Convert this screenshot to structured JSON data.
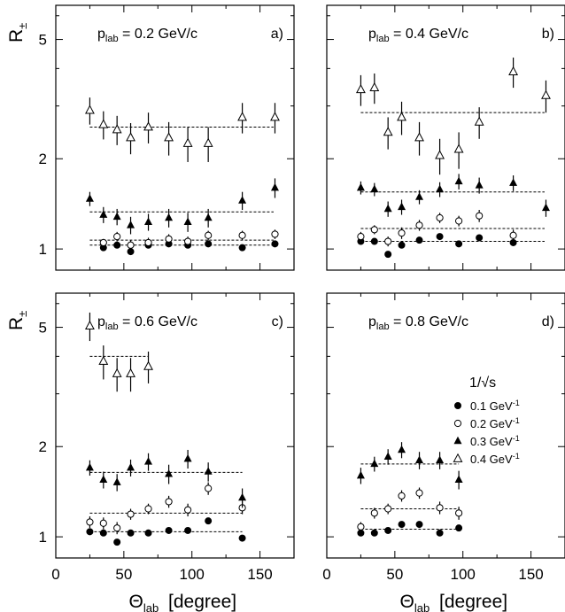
{
  "figure": {
    "ylabel": "R",
    "ylabel_sub": "±",
    "xlabel": "Θ",
    "xlabel_sub": "lab",
    "xlabel_unit": "[degree]"
  },
  "legend": {
    "title": "1/√s",
    "entries": [
      {
        "marker": "filled-circle",
        "label": "0.1 GeV",
        "sup": "-1"
      },
      {
        "marker": "open-circle",
        "label": "0.2 GeV",
        "sup": "-1"
      },
      {
        "marker": "filled-triangle",
        "label": "0.3 GeV",
        "sup": "-1"
      },
      {
        "marker": "open-triangle",
        "label": "0.4 GeV",
        "sup": "-1"
      }
    ]
  },
  "chart_data": [
    {
      "type": "scatter",
      "panel": "a)",
      "title": "p = 0.2 GeV/c",
      "title_sub": "lab",
      "xlim": [
        0,
        175
      ],
      "ylim": [
        0.85,
        6.5
      ],
      "yscale": "log",
      "xticks": [
        0,
        50,
        100,
        150
      ],
      "yticks": [
        1,
        2,
        5
      ],
      "series": [
        {
          "marker": "filled-circle",
          "fit": 1.03,
          "fit_x": [
            25,
            160
          ],
          "points": [
            [
              35,
              1.01,
              0.02
            ],
            [
              45,
              1.03,
              0.02
            ],
            [
              55,
              0.98,
              0.02
            ],
            [
              68,
              1.03,
              0.02
            ],
            [
              83,
              1.04,
              0.02
            ],
            [
              97,
              1.03,
              0.02
            ],
            [
              112,
              1.04,
              0.02
            ],
            [
              137,
              1.01,
              0.02
            ],
            [
              161,
              1.04,
              0.02
            ]
          ]
        },
        {
          "marker": "open-circle",
          "fit": 1.07,
          "fit_x": [
            25,
            160
          ],
          "points": [
            [
              35,
              1.05,
              0.03
            ],
            [
              45,
              1.1,
              0.04
            ],
            [
              55,
              1.03,
              0.04
            ],
            [
              68,
              1.05,
              0.04
            ],
            [
              83,
              1.08,
              0.04
            ],
            [
              97,
              1.06,
              0.04
            ],
            [
              112,
              1.11,
              0.04
            ],
            [
              137,
              1.11,
              0.04
            ],
            [
              161,
              1.12,
              0.04
            ]
          ]
        },
        {
          "marker": "filled-triangle",
          "fit": 1.33,
          "fit_x": [
            25,
            160
          ],
          "points": [
            [
              25,
              1.47,
              0.08
            ],
            [
              35,
              1.3,
              0.08
            ],
            [
              45,
              1.28,
              0.08
            ],
            [
              55,
              1.2,
              0.08
            ],
            [
              68,
              1.23,
              0.08
            ],
            [
              83,
              1.27,
              0.09
            ],
            [
              97,
              1.23,
              0.09
            ],
            [
              112,
              1.27,
              0.09
            ],
            [
              137,
              1.45,
              0.1
            ],
            [
              161,
              1.6,
              0.12
            ]
          ]
        },
        {
          "marker": "open-triangle",
          "fit": 2.55,
          "fit_x": [
            25,
            160
          ],
          "points": [
            [
              25,
              2.9,
              0.3
            ],
            [
              35,
              2.6,
              0.28
            ],
            [
              45,
              2.5,
              0.28
            ],
            [
              55,
              2.35,
              0.28
            ],
            [
              68,
              2.55,
              0.3
            ],
            [
              83,
              2.35,
              0.3
            ],
            [
              97,
              2.25,
              0.3
            ],
            [
              112,
              2.25,
              0.3
            ],
            [
              137,
              2.75,
              0.32
            ],
            [
              161,
              2.75,
              0.32
            ]
          ]
        }
      ]
    },
    {
      "type": "scatter",
      "panel": "b)",
      "title": "p = 0.4 GeV/c",
      "title_sub": "lab",
      "xlim": [
        0,
        175
      ],
      "ylim": [
        0.85,
        6.5
      ],
      "yscale": "log",
      "xticks": [
        0,
        50,
        100,
        150
      ],
      "yticks": [
        1,
        2,
        5
      ],
      "series": [
        {
          "marker": "filled-circle",
          "fit": 1.06,
          "fit_x": [
            25,
            160
          ],
          "points": [
            [
              25,
              1.06,
              0.02
            ],
            [
              35,
              1.06,
              0.02
            ],
            [
              45,
              0.96,
              0.02
            ],
            [
              55,
              1.03,
              0.02
            ],
            [
              68,
              1.07,
              0.02
            ],
            [
              83,
              1.1,
              0.02
            ],
            [
              97,
              1.04,
              0.02
            ],
            [
              112,
              1.09,
              0.02
            ],
            [
              137,
              1.05,
              0.02
            ]
          ]
        },
        {
          "marker": "open-circle",
          "fit": 1.17,
          "fit_x": [
            25,
            160
          ],
          "points": [
            [
              25,
              1.1,
              0.04
            ],
            [
              35,
              1.16,
              0.04
            ],
            [
              45,
              1.06,
              0.04
            ],
            [
              55,
              1.13,
              0.05
            ],
            [
              68,
              1.2,
              0.05
            ],
            [
              83,
              1.27,
              0.05
            ],
            [
              97,
              1.24,
              0.05
            ],
            [
              112,
              1.29,
              0.06
            ],
            [
              137,
              1.11,
              0.05
            ]
          ]
        },
        {
          "marker": "filled-triangle",
          "fit": 1.55,
          "fit_x": [
            25,
            160
          ],
          "points": [
            [
              25,
              1.6,
              0.08
            ],
            [
              35,
              1.58,
              0.08
            ],
            [
              45,
              1.36,
              0.08
            ],
            [
              55,
              1.38,
              0.08
            ],
            [
              68,
              1.49,
              0.08
            ],
            [
              83,
              1.58,
              0.09
            ],
            [
              97,
              1.68,
              0.1
            ],
            [
              112,
              1.63,
              0.1
            ],
            [
              137,
              1.66,
              0.1
            ],
            [
              161,
              1.37,
              0.09
            ]
          ]
        },
        {
          "marker": "open-triangle",
          "fit": 2.85,
          "fit_x": [
            25,
            160
          ],
          "points": [
            [
              25,
              3.4,
              0.4
            ],
            [
              35,
              3.45,
              0.4
            ],
            [
              45,
              2.45,
              0.3
            ],
            [
              55,
              2.75,
              0.35
            ],
            [
              68,
              2.35,
              0.3
            ],
            [
              83,
              2.05,
              0.28
            ],
            [
              97,
              2.15,
              0.3
            ],
            [
              112,
              2.65,
              0.32
            ],
            [
              137,
              3.9,
              0.45
            ],
            [
              161,
              3.25,
              0.4
            ]
          ]
        }
      ]
    },
    {
      "type": "scatter",
      "panel": "c)",
      "title": "p = 0.6 GeV/c",
      "title_sub": "lab",
      "xlim": [
        0,
        175
      ],
      "ylim": [
        0.85,
        6.5
      ],
      "yscale": "log",
      "xticks": [
        0,
        50,
        100,
        150
      ],
      "yticks": [
        1,
        2,
        5
      ],
      "series": [
        {
          "marker": "filled-circle",
          "fit": 1.04,
          "fit_x": [
            25,
            137
          ],
          "points": [
            [
              25,
              1.04,
              0.02
            ],
            [
              35,
              1.03,
              0.02
            ],
            [
              45,
              0.96,
              0.02
            ],
            [
              55,
              1.03,
              0.02
            ],
            [
              68,
              1.03,
              0.02
            ],
            [
              83,
              1.05,
              0.02
            ],
            [
              97,
              1.05,
              0.02
            ],
            [
              112,
              1.13,
              0.02
            ],
            [
              137,
              0.99,
              0.02
            ]
          ]
        },
        {
          "marker": "open-circle",
          "fit": 1.2,
          "fit_x": [
            25,
            137
          ],
          "points": [
            [
              25,
              1.12,
              0.05
            ],
            [
              35,
              1.11,
              0.05
            ],
            [
              45,
              1.07,
              0.05
            ],
            [
              55,
              1.19,
              0.05
            ],
            [
              68,
              1.24,
              0.05
            ],
            [
              83,
              1.31,
              0.06
            ],
            [
              97,
              1.23,
              0.06
            ],
            [
              112,
              1.45,
              0.07
            ],
            [
              137,
              1.25,
              0.06
            ]
          ]
        },
        {
          "marker": "filled-triangle",
          "fit": 1.64,
          "fit_x": [
            25,
            137
          ],
          "points": [
            [
              25,
              1.7,
              0.1
            ],
            [
              35,
              1.55,
              0.1
            ],
            [
              45,
              1.52,
              0.1
            ],
            [
              55,
              1.7,
              0.11
            ],
            [
              68,
              1.78,
              0.12
            ],
            [
              83,
              1.62,
              0.12
            ],
            [
              97,
              1.82,
              0.13
            ],
            [
              112,
              1.65,
              0.12
            ],
            [
              137,
              1.35,
              0.1
            ]
          ]
        },
        {
          "marker": "open-triangle",
          "fit": 4.0,
          "fit_x": [
            25,
            68
          ],
          "points": [
            [
              25,
              5.05,
              0.55
            ],
            [
              35,
              3.85,
              0.5
            ],
            [
              45,
              3.5,
              0.45
            ],
            [
              55,
              3.5,
              0.45
            ],
            [
              68,
              3.7,
              0.45
            ]
          ]
        }
      ]
    },
    {
      "type": "scatter",
      "panel": "d)",
      "title": "p = 0.8 GeV/c",
      "title_sub": "lab",
      "xlim": [
        0,
        175
      ],
      "ylim": [
        0.85,
        6.5
      ],
      "yscale": "log",
      "xticks": [
        0,
        50,
        100,
        150
      ],
      "yticks": [
        1,
        2,
        5
      ],
      "series": [
        {
          "marker": "filled-circle",
          "fit": 1.06,
          "fit_x": [
            25,
            97
          ],
          "points": [
            [
              25,
              1.03,
              0.02
            ],
            [
              35,
              1.03,
              0.02
            ],
            [
              45,
              1.05,
              0.02
            ],
            [
              55,
              1.1,
              0.02
            ],
            [
              68,
              1.1,
              0.02
            ],
            [
              83,
              1.03,
              0.02
            ],
            [
              97,
              1.07,
              0.02
            ]
          ]
        },
        {
          "marker": "open-circle",
          "fit": 1.24,
          "fit_x": [
            25,
            97
          ],
          "points": [
            [
              25,
              1.08,
              0.04
            ],
            [
              35,
              1.2,
              0.05
            ],
            [
              45,
              1.24,
              0.05
            ],
            [
              55,
              1.37,
              0.06
            ],
            [
              68,
              1.4,
              0.06
            ],
            [
              83,
              1.25,
              0.06
            ],
            [
              97,
              1.2,
              0.06
            ]
          ]
        },
        {
          "marker": "filled-triangle",
          "fit": 1.75,
          "fit_x": [
            25,
            97
          ],
          "points": [
            [
              25,
              1.6,
              0.1
            ],
            [
              35,
              1.75,
              0.1
            ],
            [
              45,
              1.85,
              0.11
            ],
            [
              55,
              1.95,
              0.12
            ],
            [
              68,
              1.8,
              0.12
            ],
            [
              83,
              1.8,
              0.12
            ],
            [
              97,
              1.55,
              0.11
            ]
          ]
        }
      ]
    }
  ]
}
